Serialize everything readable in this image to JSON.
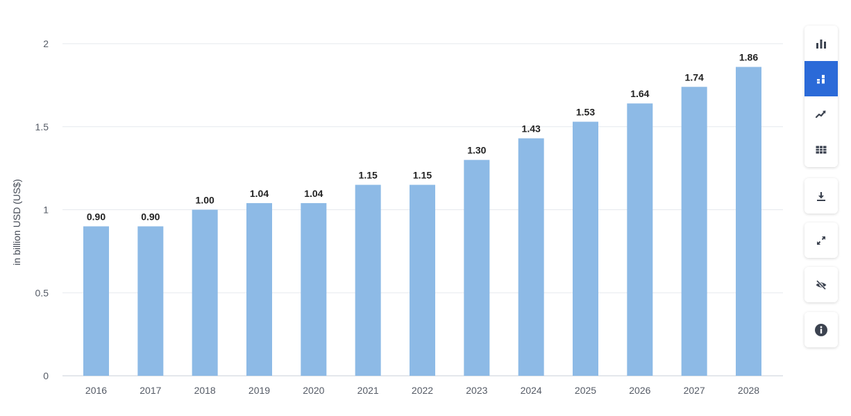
{
  "chart_data": {
    "type": "bar",
    "categories": [
      "2016",
      "2017",
      "2018",
      "2019",
      "2020",
      "2021",
      "2022",
      "2023",
      "2024",
      "2025",
      "2026",
      "2027",
      "2028"
    ],
    "values": [
      0.9,
      0.9,
      1.0,
      1.04,
      1.04,
      1.15,
      1.15,
      1.3,
      1.43,
      1.53,
      1.64,
      1.74,
      1.86
    ],
    "value_labels": [
      "0.90",
      "0.90",
      "1.00",
      "1.04",
      "1.04",
      "1.15",
      "1.15",
      "1.30",
      "1.43",
      "1.53",
      "1.64",
      "1.74",
      "1.86"
    ],
    "ylabel": "in billion USD (US$)",
    "xlabel": "",
    "title": "",
    "ylim": [
      0,
      2
    ],
    "yticks": [
      0,
      0.5,
      1,
      1.5,
      2
    ],
    "ytick_labels": [
      "0",
      "0.5",
      "1",
      "1.5",
      "2"
    ],
    "grid": true,
    "bar_color": "#8dbae6",
    "grid_color": "#e6e9ee"
  },
  "toolbar": {
    "accent_color": "#2b6ad8",
    "icon_color": "#3c4350",
    "groups": [
      {
        "name": "chart-view-group",
        "buttons": [
          {
            "name": "bar-chart-icon",
            "active": false
          },
          {
            "name": "stacked-bar-icon",
            "active": true
          },
          {
            "name": "line-chart-icon",
            "active": false
          },
          {
            "name": "table-icon",
            "active": false
          }
        ]
      },
      {
        "name": "download-group",
        "buttons": [
          {
            "name": "download-icon",
            "active": false
          }
        ]
      },
      {
        "name": "fullscreen-group",
        "buttons": [
          {
            "name": "fullscreen-icon",
            "active": false
          }
        ]
      },
      {
        "name": "hide-group",
        "buttons": [
          {
            "name": "eye-off-icon",
            "active": false
          }
        ]
      },
      {
        "name": "info-group",
        "buttons": [
          {
            "name": "info-icon",
            "active": false
          }
        ]
      }
    ]
  }
}
